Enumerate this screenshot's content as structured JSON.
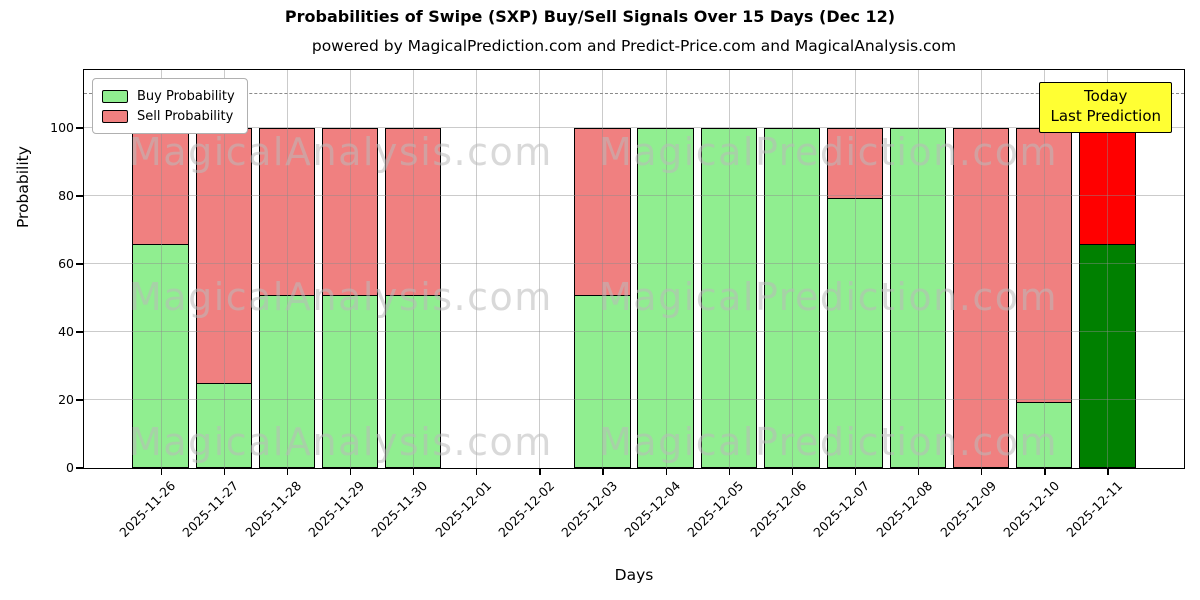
{
  "title": "Probabilities of Swipe (SXP) Buy/Sell Signals Over 15 Days (Dec 12)",
  "subtitle": "powered by MagicalPrediction.com and Predict-Price.com and MagicalAnalysis.com",
  "axes": {
    "ylabel": "Probability",
    "xlabel": "Days",
    "yticks": [
      0,
      20,
      40,
      60,
      80,
      100
    ],
    "ylim": [
      0,
      117.6
    ],
    "dashed_line_y": 110,
    "grid": true
  },
  "legend": {
    "position": "upper-left",
    "entries": [
      {
        "label": "Buy Probability",
        "color": "#90ee90"
      },
      {
        "label": "Sell Probability",
        "color": "#f08080"
      }
    ]
  },
  "annotation": {
    "line1": "Today",
    "line2": "Last Prediction",
    "bg_color": "#ffff33"
  },
  "watermarks": {
    "left_text": "MagicalAnalysis.com",
    "right_text": "MagicalPrediction.com"
  },
  "chart_data": {
    "type": "bar",
    "stacked": true,
    "title": "Probabilities of Swipe (SXP) Buy/Sell Signals Over 15 Days (Dec 12)",
    "xlabel": "Days",
    "ylabel": "Probability",
    "ylim": [
      0,
      117.6
    ],
    "categories": [
      "2025-11-26",
      "2025-11-27",
      "2025-11-28",
      "2025-11-29",
      "2025-11-30",
      "2025-12-01",
      "2025-12-02",
      "2025-12-03",
      "2025-12-04",
      "2025-12-05",
      "2025-12-06",
      "2025-12-07",
      "2025-12-08",
      "2025-12-09",
      "2025-12-10",
      "2025-12-11"
    ],
    "series": [
      {
        "name": "Buy Probability",
        "color": "#90ee90",
        "values": [
          66,
          25,
          51,
          51,
          51,
          null,
          null,
          51,
          100,
          100,
          100,
          79.5,
          100,
          0,
          19.5,
          66
        ]
      },
      {
        "name": "Sell Probability",
        "color": "#f08080",
        "values": [
          34,
          75,
          49,
          49,
          49,
          null,
          null,
          49,
          0,
          0,
          0,
          20.5,
          0,
          100,
          80.5,
          34
        ]
      }
    ],
    "empty_categories": [
      "2025-12-01",
      "2025-12-02"
    ],
    "today_bar": {
      "category": "2025-12-11",
      "buy_color": "#008000",
      "sell_color": "#ff0000"
    },
    "bar_edge_color": "#000000"
  }
}
